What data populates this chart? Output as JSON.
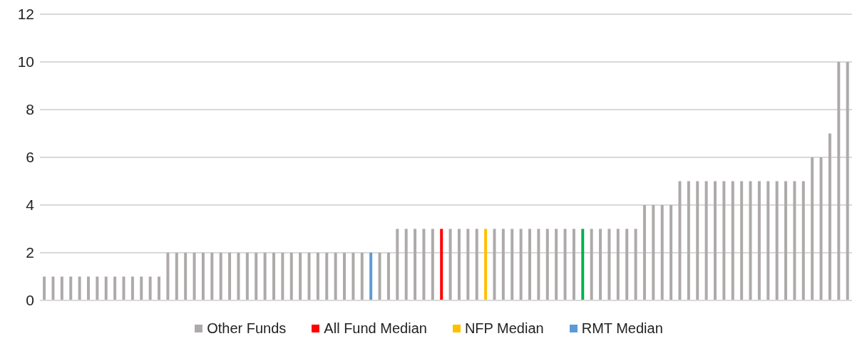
{
  "chart_data": {
    "type": "bar",
    "stacked": true,
    "categories": [
      null,
      null,
      null,
      null,
      null,
      null,
      null,
      null,
      null,
      null,
      null,
      null,
      null,
      null,
      null,
      null,
      null,
      null,
      null,
      null,
      null,
      null,
      null,
      null,
      null,
      null,
      null,
      null,
      null,
      null,
      null,
      null,
      null,
      null,
      null,
      null,
      null,
      null,
      null,
      null,
      null,
      null,
      null,
      null,
      null,
      null,
      null,
      null,
      null,
      null,
      null,
      null,
      null,
      null,
      null,
      null,
      null,
      null,
      null,
      null,
      null,
      null,
      null,
      null,
      null,
      null,
      null,
      null,
      null,
      null,
      null,
      null,
      null,
      null,
      null,
      null,
      null,
      null,
      null,
      null,
      null,
      null,
      null,
      null,
      null,
      null,
      null,
      null,
      null,
      null,
      null,
      null
    ],
    "ylim": [
      0,
      12
    ],
    "yticks": [
      0,
      2,
      4,
      6,
      8,
      10,
      12
    ],
    "grid": "y",
    "legend": "bottom",
    "series": [
      {
        "name": "Other Funds",
        "color": "#aeaaaa",
        "values": [
          1,
          1,
          1,
          1,
          1,
          1,
          1,
          1,
          1,
          1,
          1,
          1,
          1,
          1,
          2,
          2,
          2,
          2,
          2,
          2,
          2,
          2,
          2,
          2,
          2,
          2,
          2,
          2,
          2,
          2,
          2,
          2,
          2,
          2,
          2,
          2,
          2,
          null,
          2,
          2,
          3,
          3,
          3,
          3,
          3,
          null,
          3,
          3,
          3,
          3,
          null,
          3,
          3,
          3,
          3,
          3,
          3,
          3,
          3,
          3,
          3,
          null,
          3,
          3,
          3,
          3,
          3,
          3,
          4,
          4,
          4,
          4,
          5,
          5,
          5,
          5,
          5,
          5,
          5,
          5,
          5,
          5,
          5,
          5,
          5,
          5,
          5,
          6,
          6,
          7,
          10,
          10
        ]
      },
      {
        "color": "#00b050",
        "values": [
          null,
          null,
          null,
          null,
          null,
          null,
          null,
          null,
          null,
          null,
          null,
          null,
          null,
          null,
          null,
          null,
          null,
          null,
          null,
          null,
          null,
          null,
          null,
          null,
          null,
          null,
          null,
          null,
          null,
          null,
          null,
          null,
          null,
          null,
          null,
          null,
          null,
          null,
          null,
          null,
          null,
          null,
          null,
          null,
          null,
          null,
          null,
          null,
          null,
          null,
          null,
          null,
          null,
          null,
          null,
          null,
          null,
          null,
          null,
          null,
          null,
          3,
          null,
          null,
          null,
          null,
          null,
          null,
          null,
          null,
          null,
          null,
          null,
          null,
          null,
          null,
          null,
          null,
          null,
          null,
          null,
          null,
          null,
          null,
          null,
          null,
          null,
          null,
          null,
          null,
          null,
          null
        ]
      },
      {
        "name": "All Fund Median",
        "color": "#ff0000",
        "values": [
          null,
          null,
          null,
          null,
          null,
          null,
          null,
          null,
          null,
          null,
          null,
          null,
          null,
          null,
          null,
          null,
          null,
          null,
          null,
          null,
          null,
          null,
          null,
          null,
          null,
          null,
          null,
          null,
          null,
          null,
          null,
          null,
          null,
          null,
          null,
          null,
          null,
          null,
          null,
          null,
          null,
          null,
          null,
          null,
          null,
          3,
          null,
          null,
          null,
          null,
          null,
          null,
          null,
          null,
          null,
          null,
          null,
          null,
          null,
          null,
          null,
          null,
          null,
          null,
          null,
          null,
          null,
          null,
          null,
          null,
          null,
          null,
          null,
          null,
          null,
          null,
          null,
          null,
          null,
          null,
          null,
          null,
          null,
          null,
          null,
          null,
          null,
          null,
          null,
          null,
          null,
          null
        ]
      },
      {
        "name": "NFP Median",
        "color": "#ffc000",
        "values": [
          null,
          null,
          null,
          null,
          null,
          null,
          null,
          null,
          null,
          null,
          null,
          null,
          null,
          null,
          null,
          null,
          null,
          null,
          null,
          null,
          null,
          null,
          null,
          null,
          null,
          null,
          null,
          null,
          null,
          null,
          null,
          null,
          null,
          null,
          null,
          null,
          null,
          null,
          null,
          null,
          null,
          null,
          null,
          null,
          null,
          null,
          null,
          null,
          null,
          null,
          3,
          null,
          null,
          null,
          null,
          null,
          null,
          null,
          null,
          null,
          null,
          null,
          null,
          null,
          null,
          null,
          null,
          null,
          null,
          null,
          null,
          null,
          null,
          null,
          null,
          null,
          null,
          null,
          null,
          null,
          null,
          null,
          null,
          null,
          null,
          null,
          null,
          null,
          null,
          null,
          null,
          null
        ]
      },
      {
        "name": "RMT Median",
        "color": "#5b9bd5",
        "values": [
          null,
          null,
          null,
          null,
          null,
          null,
          null,
          null,
          null,
          null,
          null,
          null,
          null,
          null,
          null,
          null,
          null,
          null,
          null,
          null,
          null,
          null,
          null,
          null,
          null,
          null,
          null,
          null,
          null,
          null,
          null,
          null,
          null,
          null,
          null,
          null,
          null,
          2,
          null,
          null,
          null,
          null,
          null,
          null,
          null,
          null,
          null,
          null,
          null,
          null,
          null,
          null,
          null,
          null,
          null,
          null,
          null,
          null,
          null,
          null,
          null,
          null,
          null,
          null,
          null,
          null,
          null,
          null,
          null,
          null,
          null,
          null,
          null,
          null,
          null,
          null,
          null,
          null,
          null,
          null,
          null,
          null,
          null,
          null,
          null,
          null,
          null,
          null,
          null,
          null,
          null,
          null
        ]
      }
    ]
  }
}
